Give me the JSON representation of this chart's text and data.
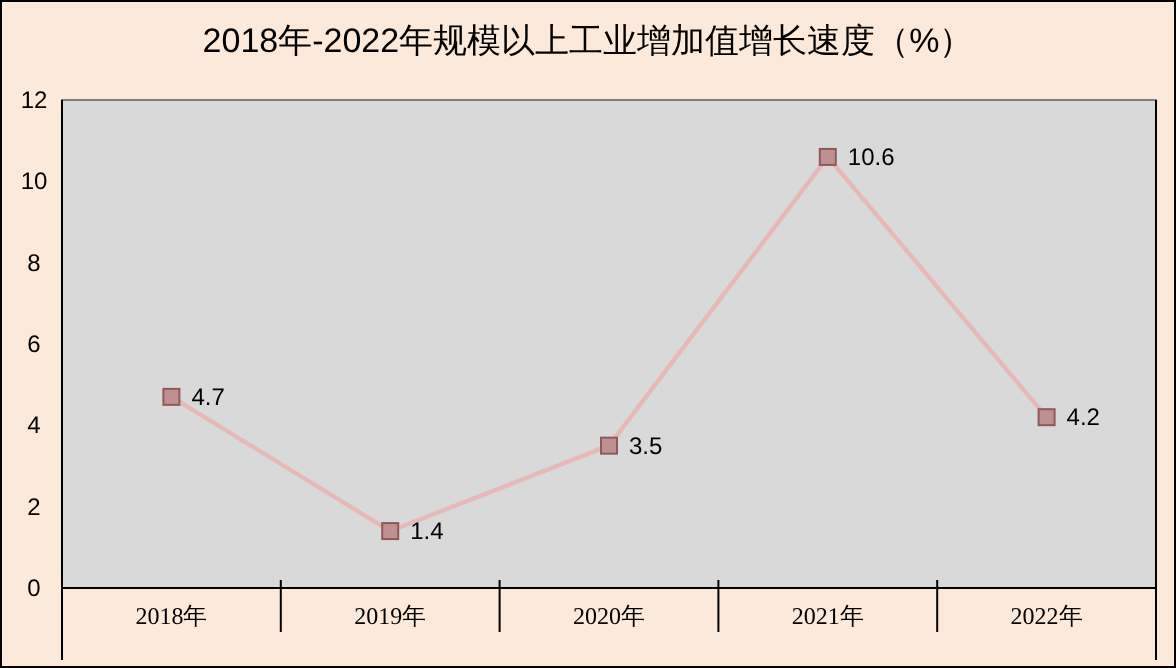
{
  "chart_data": {
    "type": "line",
    "title": "2018年-2022年规模以上工业增加值增长速度（%）",
    "categories": [
      "2018年",
      "2019年",
      "2020年",
      "2021年",
      "2022年"
    ],
    "series": [
      {
        "color": "#e6b9b8",
        "values": [
          4.7,
          1.4,
          3.5,
          10.6,
          4.2
        ]
      }
    ],
    "ylim": [
      0,
      12
    ],
    "yticks": [
      0,
      2,
      4,
      6,
      8,
      10,
      12
    ],
    "marker": "square",
    "data_labels": true
  }
}
